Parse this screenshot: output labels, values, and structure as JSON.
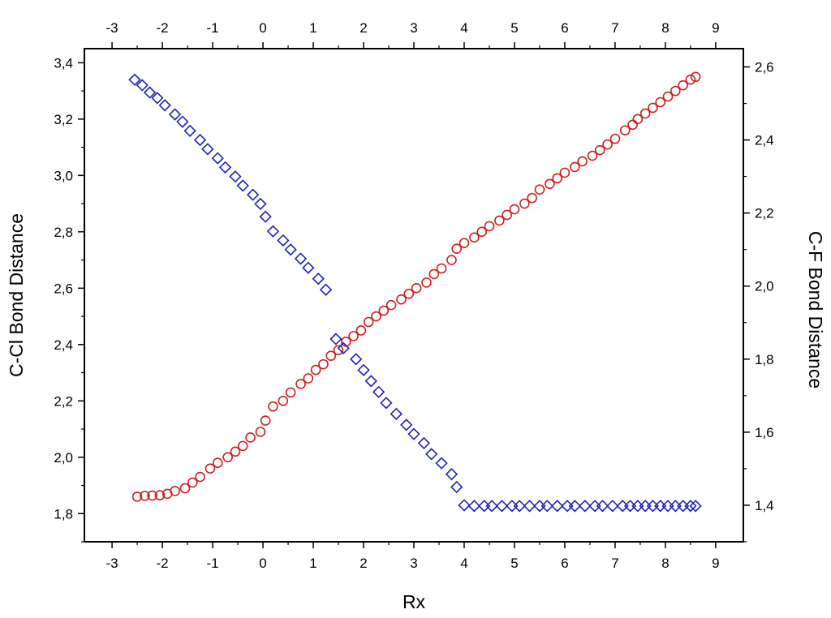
{
  "chart_data": {
    "type": "scatter",
    "xlabel": "Rx",
    "ylabel_left": "C-Cl Bond Distance",
    "ylabel_right": "C-F Bond Distance",
    "xlim": [
      -3.55,
      9.55
    ],
    "ylim_left": [
      1.7,
      3.45
    ],
    "ylim_right": [
      1.3,
      2.65
    ],
    "x_ticks": [
      -3,
      -2,
      -1,
      0,
      1,
      2,
      3,
      4,
      5,
      6,
      7,
      8,
      9
    ],
    "left_ticks": [
      "1,8",
      "2,0",
      "2,2",
      "2,4",
      "2,6",
      "2,8",
      "3,0",
      "3,2",
      "3,4"
    ],
    "left_tick_values": [
      1.8,
      2.0,
      2.2,
      2.4,
      2.6,
      2.8,
      3.0,
      3.2,
      3.4
    ],
    "right_ticks": [
      "1,4",
      "1,6",
      "1,8",
      "2,0",
      "2,2",
      "2,4",
      "2,6"
    ],
    "right_tick_values": [
      1.4,
      1.6,
      1.8,
      2.0,
      2.2,
      2.4,
      2.6
    ],
    "series": [
      {
        "axis": "left",
        "marker": "circle",
        "color": "#cc2020",
        "points": [
          [
            -2.5,
            1.86
          ],
          [
            -2.35,
            1.863
          ],
          [
            -2.2,
            1.864
          ],
          [
            -2.05,
            1.865
          ],
          [
            -1.9,
            1.87
          ],
          [
            -1.75,
            1.88
          ],
          [
            -1.55,
            1.89
          ],
          [
            -1.4,
            1.91
          ],
          [
            -1.25,
            1.93
          ],
          [
            -1.05,
            1.96
          ],
          [
            -0.9,
            1.98
          ],
          [
            -0.7,
            2.0
          ],
          [
            -0.55,
            2.02
          ],
          [
            -0.4,
            2.04
          ],
          [
            -0.25,
            2.07
          ],
          [
            -0.05,
            2.09
          ],
          [
            0.05,
            2.13
          ],
          [
            0.2,
            2.18
          ],
          [
            0.4,
            2.2
          ],
          [
            0.55,
            2.23
          ],
          [
            0.75,
            2.26
          ],
          [
            0.9,
            2.28
          ],
          [
            1.05,
            2.31
          ],
          [
            1.2,
            2.33
          ],
          [
            1.35,
            2.36
          ],
          [
            1.5,
            2.38
          ],
          [
            1.65,
            2.41
          ],
          [
            1.8,
            2.43
          ],
          [
            1.95,
            2.45
          ],
          [
            2.1,
            2.48
          ],
          [
            2.25,
            2.5
          ],
          [
            2.4,
            2.52
          ],
          [
            2.55,
            2.54
          ],
          [
            2.75,
            2.56
          ],
          [
            2.9,
            2.58
          ],
          [
            3.05,
            2.6
          ],
          [
            3.25,
            2.62
          ],
          [
            3.4,
            2.65
          ],
          [
            3.55,
            2.67
          ],
          [
            3.75,
            2.7
          ],
          [
            3.85,
            2.74
          ],
          [
            4.0,
            2.76
          ],
          [
            4.2,
            2.78
          ],
          [
            4.35,
            2.8
          ],
          [
            4.5,
            2.82
          ],
          [
            4.7,
            2.84
          ],
          [
            4.85,
            2.86
          ],
          [
            5.0,
            2.88
          ],
          [
            5.2,
            2.9
          ],
          [
            5.35,
            2.92
          ],
          [
            5.5,
            2.95
          ],
          [
            5.7,
            2.97
          ],
          [
            5.85,
            2.99
          ],
          [
            6.0,
            3.01
          ],
          [
            6.2,
            3.03
          ],
          [
            6.35,
            3.05
          ],
          [
            6.55,
            3.07
          ],
          [
            6.7,
            3.09
          ],
          [
            6.85,
            3.11
          ],
          [
            7.0,
            3.13
          ],
          [
            7.2,
            3.16
          ],
          [
            7.35,
            3.18
          ],
          [
            7.45,
            3.2
          ],
          [
            7.6,
            3.22
          ],
          [
            7.75,
            3.24
          ],
          [
            7.9,
            3.26
          ],
          [
            8.05,
            3.28
          ],
          [
            8.2,
            3.3
          ],
          [
            8.35,
            3.32
          ],
          [
            8.5,
            3.34
          ],
          [
            8.6,
            3.35
          ]
        ]
      },
      {
        "axis": "right",
        "marker": "diamond",
        "color": "#1f22b8",
        "points": [
          [
            -2.55,
            2.565
          ],
          [
            -2.4,
            2.55
          ],
          [
            -2.25,
            2.53
          ],
          [
            -2.1,
            2.515
          ],
          [
            -1.95,
            2.495
          ],
          [
            -1.75,
            2.47
          ],
          [
            -1.6,
            2.45
          ],
          [
            -1.45,
            2.425
          ],
          [
            -1.25,
            2.4
          ],
          [
            -1.1,
            2.375
          ],
          [
            -0.9,
            2.35
          ],
          [
            -0.75,
            2.325
          ],
          [
            -0.55,
            2.3
          ],
          [
            -0.4,
            2.275
          ],
          [
            -0.2,
            2.25
          ],
          [
            -0.05,
            2.225
          ],
          [
            0.05,
            2.19
          ],
          [
            0.2,
            2.15
          ],
          [
            0.4,
            2.125
          ],
          [
            0.55,
            2.1
          ],
          [
            0.75,
            2.075
          ],
          [
            0.9,
            2.05
          ],
          [
            1.1,
            2.02
          ],
          [
            1.25,
            1.99
          ],
          [
            1.45,
            1.855
          ],
          [
            1.6,
            1.83
          ],
          [
            1.85,
            1.8
          ],
          [
            2.0,
            1.77
          ],
          [
            2.15,
            1.74
          ],
          [
            2.3,
            1.71
          ],
          [
            2.45,
            1.68
          ],
          [
            2.65,
            1.65
          ],
          [
            2.85,
            1.62
          ],
          [
            3.0,
            1.595
          ],
          [
            3.2,
            1.57
          ],
          [
            3.35,
            1.54
          ],
          [
            3.55,
            1.515
          ],
          [
            3.75,
            1.485
          ],
          [
            3.85,
            1.45
          ],
          [
            4.0,
            1.4
          ],
          [
            4.2,
            1.398
          ],
          [
            4.4,
            1.398
          ],
          [
            4.55,
            1.398
          ],
          [
            4.75,
            1.398
          ],
          [
            4.95,
            1.398
          ],
          [
            5.1,
            1.398
          ],
          [
            5.3,
            1.398
          ],
          [
            5.5,
            1.398
          ],
          [
            5.65,
            1.398
          ],
          [
            5.85,
            1.398
          ],
          [
            6.05,
            1.398
          ],
          [
            6.2,
            1.398
          ],
          [
            6.4,
            1.398
          ],
          [
            6.6,
            1.398
          ],
          [
            6.75,
            1.398
          ],
          [
            6.95,
            1.398
          ],
          [
            7.15,
            1.398
          ],
          [
            7.3,
            1.398
          ],
          [
            7.45,
            1.398
          ],
          [
            7.6,
            1.398
          ],
          [
            7.75,
            1.398
          ],
          [
            7.9,
            1.398
          ],
          [
            8.05,
            1.398
          ],
          [
            8.2,
            1.398
          ],
          [
            8.35,
            1.398
          ],
          [
            8.5,
            1.398
          ],
          [
            8.6,
            1.398
          ]
        ]
      }
    ]
  }
}
